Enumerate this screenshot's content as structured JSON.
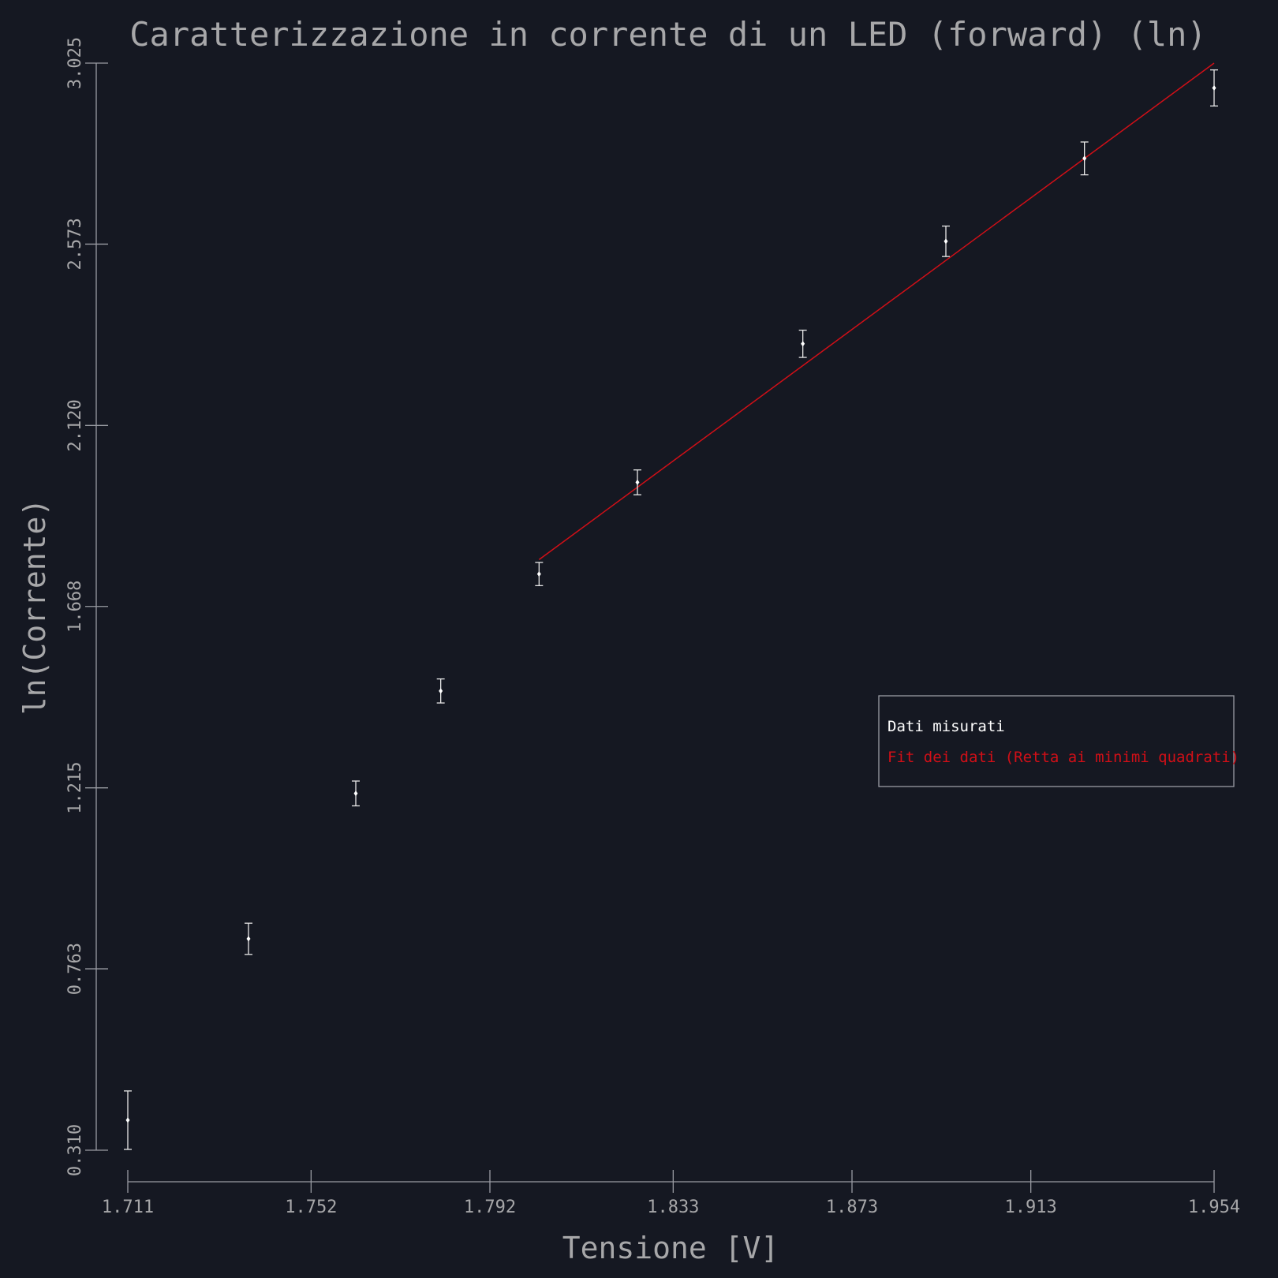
{
  "chart_data": {
    "type": "scatter",
    "title": "Caratterizzazione in corrente di un LED (forward) (ln)",
    "xlabel": "Tensione [V]",
    "ylabel": "ln(Corrente)",
    "xlim": [
      1.711,
      1.954
    ],
    "ylim": [
      0.31,
      3.025
    ],
    "xticks": [
      "1.711",
      "1.752",
      "1.792",
      "1.833",
      "1.873",
      "1.913",
      "1.954"
    ],
    "yticks": [
      "0.310",
      "0.763",
      "1.215",
      "1.668",
      "2.120",
      "2.573",
      "3.025"
    ],
    "series": [
      {
        "name": "Dati misurati",
        "color": "#ffffff",
        "points": [
          {
            "x": 1.711,
            "y": 0.385,
            "err": 0.073
          },
          {
            "x": 1.738,
            "y": 0.838,
            "err": 0.039
          },
          {
            "x": 1.762,
            "y": 1.201,
            "err": 0.031
          },
          {
            "x": 1.781,
            "y": 1.457,
            "err": 0.03
          },
          {
            "x": 1.803,
            "y": 1.749,
            "err": 0.029
          },
          {
            "x": 1.825,
            "y": 1.978,
            "err": 0.031
          },
          {
            "x": 1.862,
            "y": 2.324,
            "err": 0.034
          },
          {
            "x": 1.894,
            "y": 2.58,
            "err": 0.038
          },
          {
            "x": 1.925,
            "y": 2.787,
            "err": 0.041
          },
          {
            "x": 1.954,
            "y": 2.963,
            "err": 0.045
          }
        ]
      },
      {
        "name": "Fit dei dati (Retta ai minimi quadrati)",
        "color": "#d10f17",
        "line": [
          {
            "x": 1.803,
            "y": 1.785
          },
          {
            "x": 1.954,
            "y": 3.025
          }
        ]
      }
    ],
    "legend_position": "right-middle"
  }
}
